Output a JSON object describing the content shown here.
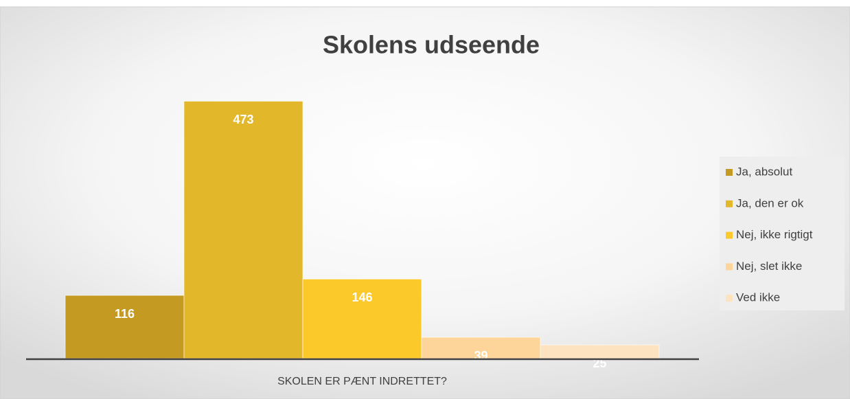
{
  "chart_data": {
    "type": "bar",
    "title": "Skolens udseende",
    "categories": [
      "SKOLEN ER PÆNT INDRETTET?"
    ],
    "series": [
      {
        "name": "Ja, absolut",
        "color": "#c49a22",
        "values": [
          116
        ]
      },
      {
        "name": "Ja, den er ok",
        "color": "#e2b729",
        "values": [
          473
        ]
      },
      {
        "name": "Nej, ikke rigtigt",
        "color": "#fcc92b",
        "values": [
          146
        ]
      },
      {
        "name": "Nej, slet ikke",
        "color": "#fdd59a",
        "values": [
          39
        ]
      },
      {
        "name": "Ved ikke",
        "color": "#fee3c0",
        "values": [
          25
        ]
      }
    ],
    "ylim": [
      0,
      500
    ],
    "legend": "right"
  }
}
